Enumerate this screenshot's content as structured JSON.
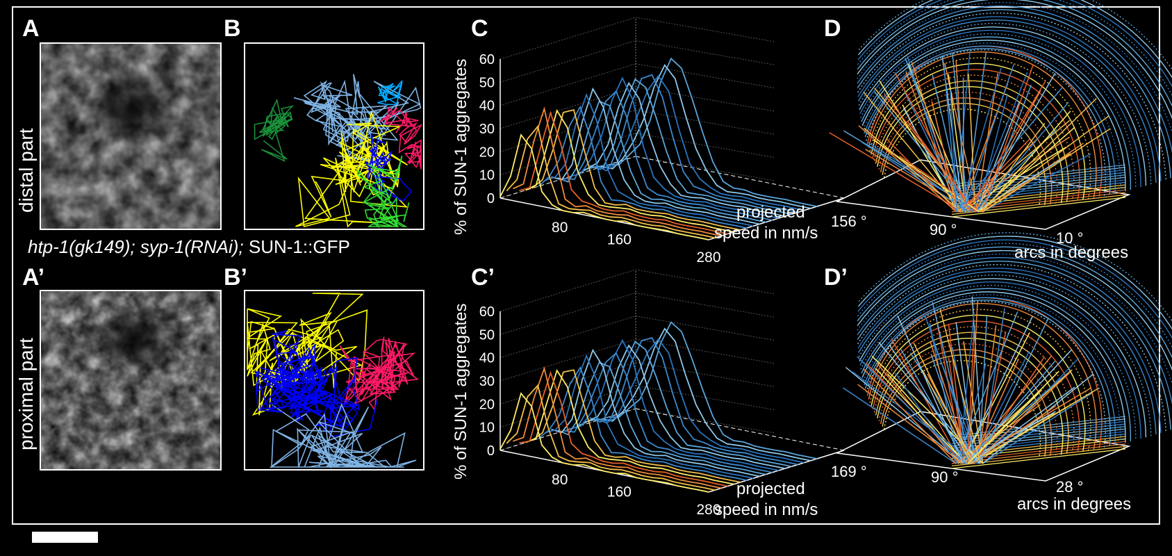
{
  "panels": {
    "A": "A",
    "A_prime": "A’",
    "B": "B",
    "B_prime": "B’",
    "C": "C",
    "C_prime": "C’",
    "D": "D",
    "D_prime": "D’"
  },
  "side_labels": {
    "distal": "distal part",
    "proximal": "proximal part"
  },
  "genotype": {
    "italic": "htp-1(gk149); syp-1(RNAi);",
    "normal": " SUN-1::GFP"
  },
  "colors": {
    "traj": [
      "#7fb4e6",
      "#1a8f3a",
      "#ffff00",
      "#0000ff",
      "#ff1a66",
      "#33dd33",
      "#00aaff"
    ],
    "warm": [
      "#ffee66",
      "#f5c04a",
      "#f08a3a",
      "#e8602a"
    ],
    "cool": [
      "#8ec8ea",
      "#5aa6dc",
      "#3b8ad0",
      "#2a74c0"
    ]
  },
  "chart_data": [
    {
      "type": "line",
      "panel": "C",
      "ylabel": "% of SUN-1 aggregates",
      "xlabel": [
        "projected",
        "speed in nm/s"
      ],
      "y_ticks": [
        0,
        10,
        20,
        30,
        40,
        50,
        60
      ],
      "x_ticks": [
        80,
        160,
        280
      ],
      "ylim": [
        0,
        60
      ],
      "xlim": [
        0,
        280
      ]
    },
    {
      "type": "line",
      "panel": "C’",
      "ylabel": "% of SUN-1 aggregates",
      "xlabel": [
        "projected",
        "speed in nm/s"
      ],
      "y_ticks": [
        0,
        10,
        20,
        30,
        40,
        50,
        60
      ],
      "x_ticks": [
        80,
        160,
        280
      ],
      "ylim": [
        0,
        60
      ],
      "xlim": [
        0,
        280
      ]
    },
    {
      "type": "line",
      "panel": "D",
      "xlabel": "arcs in degrees",
      "ticks": [
        "156 °",
        "90 °",
        "10 °"
      ]
    },
    {
      "type": "line",
      "panel": "D’",
      "xlabel": "arcs in degrees",
      "ticks": [
        "169 °",
        "90 °",
        "28 °"
      ]
    }
  ]
}
